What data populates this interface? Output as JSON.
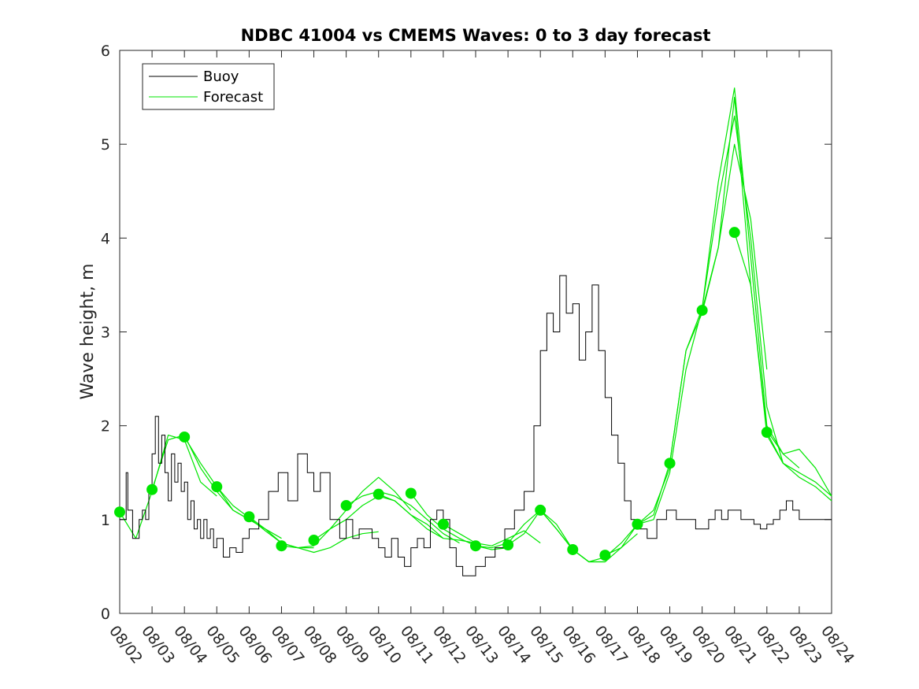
{
  "chart_data": {
    "type": "line",
    "title": "NDBC 41004 vs CMEMS Waves: 0 to 3 day forecast",
    "xlabel": "",
    "ylabel": "Wave height, m",
    "xlim": [
      0,
      22
    ],
    "ylim": [
      0,
      6
    ],
    "x_tick_labels": [
      "08/02",
      "08/03",
      "08/04",
      "08/05",
      "08/06",
      "08/07",
      "08/08",
      "08/09",
      "08/10",
      "08/11",
      "08/12",
      "08/13",
      "08/14",
      "08/15",
      "08/16",
      "08/17",
      "08/18",
      "08/19",
      "08/20",
      "08/21",
      "08/22",
      "08/23",
      "08/24"
    ],
    "y_ticks": [
      0,
      1,
      2,
      3,
      4,
      5,
      6
    ],
    "grid": false,
    "legend_position": "top-left",
    "colors": {
      "buoy": "#000000",
      "forecast": "#00e600"
    },
    "series": [
      {
        "name": "Buoy",
        "x": [
          0,
          0.15,
          0.2,
          0.25,
          0.4,
          0.6,
          0.7,
          0.8,
          0.9,
          1,
          1.1,
          1.2,
          1.3,
          1.4,
          1.5,
          1.6,
          1.7,
          1.8,
          1.9,
          2,
          2.1,
          2.2,
          2.3,
          2.4,
          2.5,
          2.6,
          2.7,
          2.8,
          2.9,
          3,
          3.2,
          3.4,
          3.6,
          3.8,
          4,
          4.3,
          4.6,
          4.9,
          5.2,
          5.5,
          5.8,
          6,
          6.2,
          6.5,
          6.8,
          7,
          7.2,
          7.4,
          7.6,
          7.8,
          8,
          8.2,
          8.4,
          8.6,
          8.8,
          9,
          9.2,
          9.4,
          9.6,
          9.8,
          10,
          10.2,
          10.4,
          10.6,
          10.8,
          11,
          11.3,
          11.6,
          11.9,
          12.2,
          12.5,
          12.8,
          13,
          13.2,
          13.4,
          13.6,
          13.8,
          14,
          14.2,
          14.4,
          14.6,
          14.8,
          15,
          15.2,
          15.4,
          15.6,
          15.8,
          16,
          16.3,
          16.6,
          16.9,
          17.2,
          17.5,
          17.8,
          18,
          18.2,
          18.4,
          18.6,
          18.8,
          19,
          19.2,
          19.4,
          19.6,
          19.8,
          20,
          20.2,
          20.4,
          20.6,
          20.8,
          21,
          21.2,
          21.4,
          21.6,
          21.8,
          22
        ],
        "values": [
          1.0,
          1.0,
          1.5,
          1.1,
          0.8,
          1.0,
          1.1,
          1.0,
          1.3,
          1.7,
          2.1,
          1.6,
          1.9,
          1.5,
          1.2,
          1.7,
          1.4,
          1.6,
          1.3,
          1.4,
          1.0,
          1.2,
          0.9,
          1.0,
          0.8,
          1.0,
          0.8,
          0.9,
          0.7,
          0.8,
          0.6,
          0.7,
          0.65,
          0.8,
          0.9,
          1.0,
          1.3,
          1.5,
          1.2,
          1.7,
          1.5,
          1.3,
          1.5,
          1.0,
          0.8,
          1.0,
          0.8,
          0.9,
          0.9,
          0.8,
          0.7,
          0.6,
          0.8,
          0.6,
          0.5,
          0.7,
          0.8,
          0.7,
          1.0,
          1.1,
          1.0,
          0.7,
          0.5,
          0.4,
          0.4,
          0.5,
          0.6,
          0.7,
          0.9,
          1.1,
          1.3,
          2.0,
          2.8,
          3.2,
          3.0,
          3.6,
          3.2,
          3.3,
          2.7,
          3.0,
          3.5,
          2.8,
          2.3,
          1.9,
          1.6,
          1.2,
          1.0,
          0.9,
          0.8,
          1.0,
          1.1,
          1.0,
          1.0,
          0.9,
          0.9,
          1.0,
          1.1,
          1.0,
          1.1,
          1.1,
          1.0,
          1.0,
          0.95,
          0.9,
          0.95,
          1.0,
          1.1,
          1.2,
          1.1,
          1.0,
          1.0,
          1.0,
          1.0,
          1.0,
          1.0
        ]
      }
    ],
    "forecast_series": [
      {
        "name": "Forecast",
        "x": [
          0,
          0.5,
          1,
          1.5,
          2,
          2.5,
          3
        ],
        "values": [
          1.08,
          0.8,
          1.3,
          1.9,
          1.85,
          1.4,
          1.25
        ]
      },
      {
        "name": "Forecast",
        "x": [
          1,
          1.5,
          2,
          2.5,
          3,
          3.5,
          4
        ],
        "values": [
          1.32,
          1.85,
          1.9,
          1.55,
          1.3,
          1.1,
          1.0
        ]
      },
      {
        "name": "Forecast",
        "x": [
          2,
          2.5,
          3,
          3.5,
          4,
          4.5,
          5
        ],
        "values": [
          1.88,
          1.6,
          1.35,
          1.1,
          1.0,
          0.9,
          0.8
        ]
      },
      {
        "name": "Forecast",
        "x": [
          3,
          3.5,
          4,
          4.5,
          5,
          5.5,
          6
        ],
        "values": [
          1.35,
          1.15,
          1.02,
          0.88,
          0.75,
          0.7,
          0.7
        ]
      },
      {
        "name": "Forecast",
        "x": [
          4,
          4.5,
          5,
          5.5,
          6,
          6.5,
          7,
          7.5,
          8
        ],
        "values": [
          1.03,
          0.9,
          0.75,
          0.7,
          0.65,
          0.7,
          0.8,
          0.85,
          0.87
        ]
      },
      {
        "name": "Forecast",
        "x": [
          5,
          5.5,
          6,
          6.5,
          7,
          7.5,
          8,
          8.5,
          9
        ],
        "values": [
          0.72,
          0.7,
          0.72,
          0.9,
          1.1,
          1.3,
          1.45,
          1.3,
          1.1
        ]
      },
      {
        "name": "Forecast",
        "x": [
          6,
          6.5,
          7,
          7.5,
          8,
          8.5,
          9,
          9.5,
          10
        ],
        "values": [
          0.78,
          0.9,
          1.0,
          1.15,
          1.25,
          1.2,
          1.05,
          0.95,
          0.8
        ]
      },
      {
        "name": "Forecast",
        "x": [
          7,
          7.5,
          8,
          8.5,
          9,
          9.5,
          10,
          10.5
        ],
        "values": [
          1.15,
          1.25,
          1.3,
          1.25,
          1.15,
          1.0,
          0.85,
          0.75
        ]
      },
      {
        "name": "Forecast",
        "x": [
          8,
          8.5,
          9,
          9.5,
          10,
          10.5,
          11
        ],
        "values": [
          1.27,
          1.2,
          1.05,
          0.9,
          0.8,
          0.78,
          0.75
        ]
      },
      {
        "name": "Forecast",
        "x": [
          9,
          9.5,
          10,
          10.5,
          11,
          11.5,
          12
        ],
        "values": [
          1.28,
          1.05,
          0.9,
          0.8,
          0.72,
          0.68,
          0.7
        ]
      },
      {
        "name": "Forecast",
        "x": [
          10,
          10.5,
          11,
          11.5,
          12,
          12.5,
          13
        ],
        "values": [
          0.95,
          0.85,
          0.75,
          0.72,
          0.8,
          0.88,
          0.75
        ]
      },
      {
        "name": "Forecast",
        "x": [
          11,
          11.5,
          12,
          12.5,
          13,
          13.5,
          14
        ],
        "values": [
          0.72,
          0.7,
          0.75,
          0.95,
          1.1,
          0.9,
          0.68
        ]
      },
      {
        "name": "Forecast",
        "x": [
          12,
          12.5,
          13,
          13.5,
          14,
          14.5,
          15
        ],
        "values": [
          0.73,
          0.85,
          1.1,
          0.95,
          0.68,
          0.55,
          0.55
        ]
      },
      {
        "name": "Forecast",
        "x": [
          13,
          13.5,
          14,
          14.5,
          15,
          15.5,
          16
        ],
        "values": [
          1.1,
          0.9,
          0.68,
          0.55,
          0.55,
          0.7,
          0.85
        ]
      },
      {
        "name": "Forecast",
        "x": [
          14,
          14.5,
          15,
          15.5,
          16,
          16.5,
          17
        ],
        "values": [
          0.68,
          0.55,
          0.6,
          0.75,
          0.95,
          1.1,
          1.55
        ]
      },
      {
        "name": "Forecast",
        "x": [
          15,
          15.5,
          16,
          16.5,
          17,
          17.5,
          18,
          18.5,
          19,
          19.5,
          20
        ],
        "values": [
          0.62,
          0.7,
          0.95,
          1.05,
          1.6,
          2.8,
          3.2,
          3.9,
          5.0,
          4.2,
          2.6
        ]
      },
      {
        "name": "Forecast",
        "x": [
          16,
          16.5,
          17,
          17.5,
          18,
          18.5,
          19,
          19.5,
          20,
          20.5
        ],
        "values": [
          0.95,
          1.0,
          1.5,
          2.6,
          3.25,
          4.4,
          5.3,
          4.0,
          2.2,
          1.6
        ]
      },
      {
        "name": "Forecast",
        "x": [
          17,
          17.5,
          18,
          18.5,
          19,
          19.5,
          20,
          20.5,
          21
        ],
        "values": [
          1.6,
          2.8,
          3.25,
          4.6,
          5.6,
          3.8,
          2.0,
          1.7,
          1.55
        ]
      },
      {
        "name": "Forecast",
        "x": [
          18,
          18.5,
          19,
          19.5,
          20,
          20.5,
          21,
          21.5,
          22
        ],
        "values": [
          3.23,
          3.9,
          5.5,
          3.5,
          1.9,
          1.6,
          1.45,
          1.35,
          1.2
        ]
      },
      {
        "name": "Forecast",
        "x": [
          19,
          19.5,
          20,
          20.5,
          21,
          21.5,
          22
        ],
        "values": [
          4.06,
          3.5,
          1.95,
          1.7,
          1.75,
          1.55,
          1.25
        ]
      },
      {
        "name": "Forecast",
        "x": [
          20,
          20.5,
          21,
          21.5,
          22
        ],
        "values": [
          1.93,
          1.6,
          1.5,
          1.4,
          1.25
        ]
      }
    ],
    "forecast_markers": {
      "x": [
        0,
        1,
        2,
        3,
        4,
        5,
        6,
        7,
        8,
        9,
        10,
        11,
        12,
        13,
        14,
        15,
        16,
        17,
        18,
        19,
        20
      ],
      "values": [
        1.08,
        1.32,
        1.88,
        1.35,
        1.03,
        0.72,
        0.78,
        1.15,
        1.27,
        1.28,
        0.95,
        0.72,
        0.73,
        1.1,
        0.68,
        0.62,
        0.95,
        1.6,
        3.23,
        4.06,
        1.93
      ]
    }
  },
  "legend": {
    "entries": [
      {
        "label": "Buoy",
        "color": "#000000"
      },
      {
        "label": "Forecast",
        "color": "#00e600"
      }
    ]
  }
}
